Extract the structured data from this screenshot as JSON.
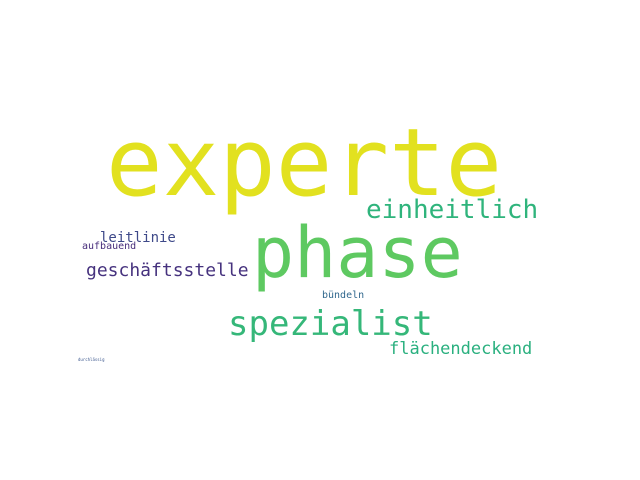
{
  "words": [
    {
      "text": "experte",
      "color": "#e2e11f"
    },
    {
      "text": "phase",
      "color": "#5ec961"
    },
    {
      "text": "spezialist",
      "color": "#35b779"
    },
    {
      "text": "einheitlich",
      "color": "#2fb47c"
    },
    {
      "text": "geschäftsstelle",
      "color": "#46327e"
    },
    {
      "text": "flächendeckend",
      "color": "#2ab07f"
    },
    {
      "text": "leitlinie",
      "color": "#3e4989"
    },
    {
      "text": "aufbauend",
      "color": "#472d7b"
    },
    {
      "text": "bündeln",
      "color": "#31688e"
    },
    {
      "text": "durchlässig",
      "color": "#39558c"
    }
  ]
}
